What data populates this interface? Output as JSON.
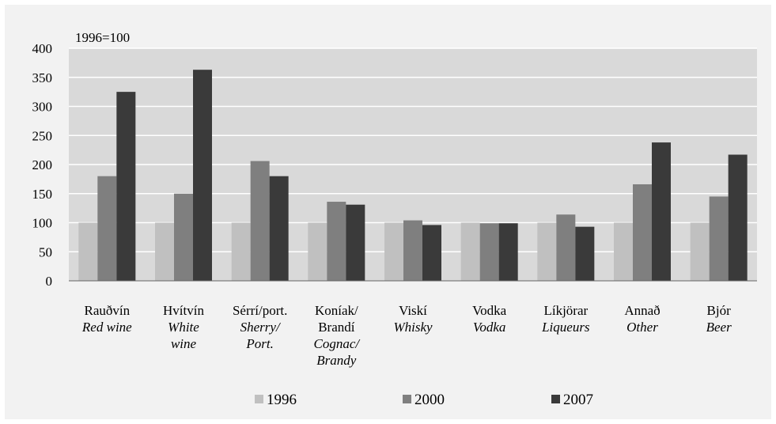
{
  "chart_data": {
    "type": "bar",
    "unit_label": "1996=100",
    "categories": [
      {
        "is": "Rauðvín",
        "en": [
          "Red wine"
        ]
      },
      {
        "is": "Hvítvín",
        "en": [
          "White",
          "wine"
        ]
      },
      {
        "is": "Sérrí/port.",
        "en": [
          "Sherry/",
          "Port."
        ]
      },
      {
        "is": "Koníak/",
        "is2": "Brandí",
        "en": [
          "Cognac/",
          "Brandy"
        ]
      },
      {
        "is": "Viskí",
        "en": [
          "Whisky"
        ]
      },
      {
        "is": "Vodka",
        "en": [
          "Vodka"
        ]
      },
      {
        "is": "Líkjörar",
        "en": [
          "Liqueurs"
        ]
      },
      {
        "is": "Annað",
        "en": [
          "Other"
        ]
      },
      {
        "is": "Bjór",
        "en": [
          "Beer"
        ]
      }
    ],
    "series": [
      {
        "name": "1996",
        "color": "#c0c0c0",
        "values": [
          100,
          100,
          100,
          100,
          100,
          100,
          100,
          100,
          100
        ]
      },
      {
        "name": "2000",
        "color": "#7f7f7f",
        "values": [
          180,
          150,
          206,
          136,
          104,
          99,
          114,
          166,
          145
        ]
      },
      {
        "name": "2007",
        "color": "#3a3a3a",
        "values": [
          325,
          363,
          180,
          131,
          96,
          99,
          93,
          238,
          217
        ]
      }
    ],
    "ylim": [
      0,
      400
    ],
    "yticks": [
      0,
      50,
      100,
      150,
      200,
      250,
      300,
      350,
      400
    ],
    "grid": true,
    "legend_position": "bottom",
    "colors": {
      "outer_bg": "#f2f2f2",
      "plot_bg": "#d9d9d9",
      "grid": "#ffffff"
    }
  }
}
